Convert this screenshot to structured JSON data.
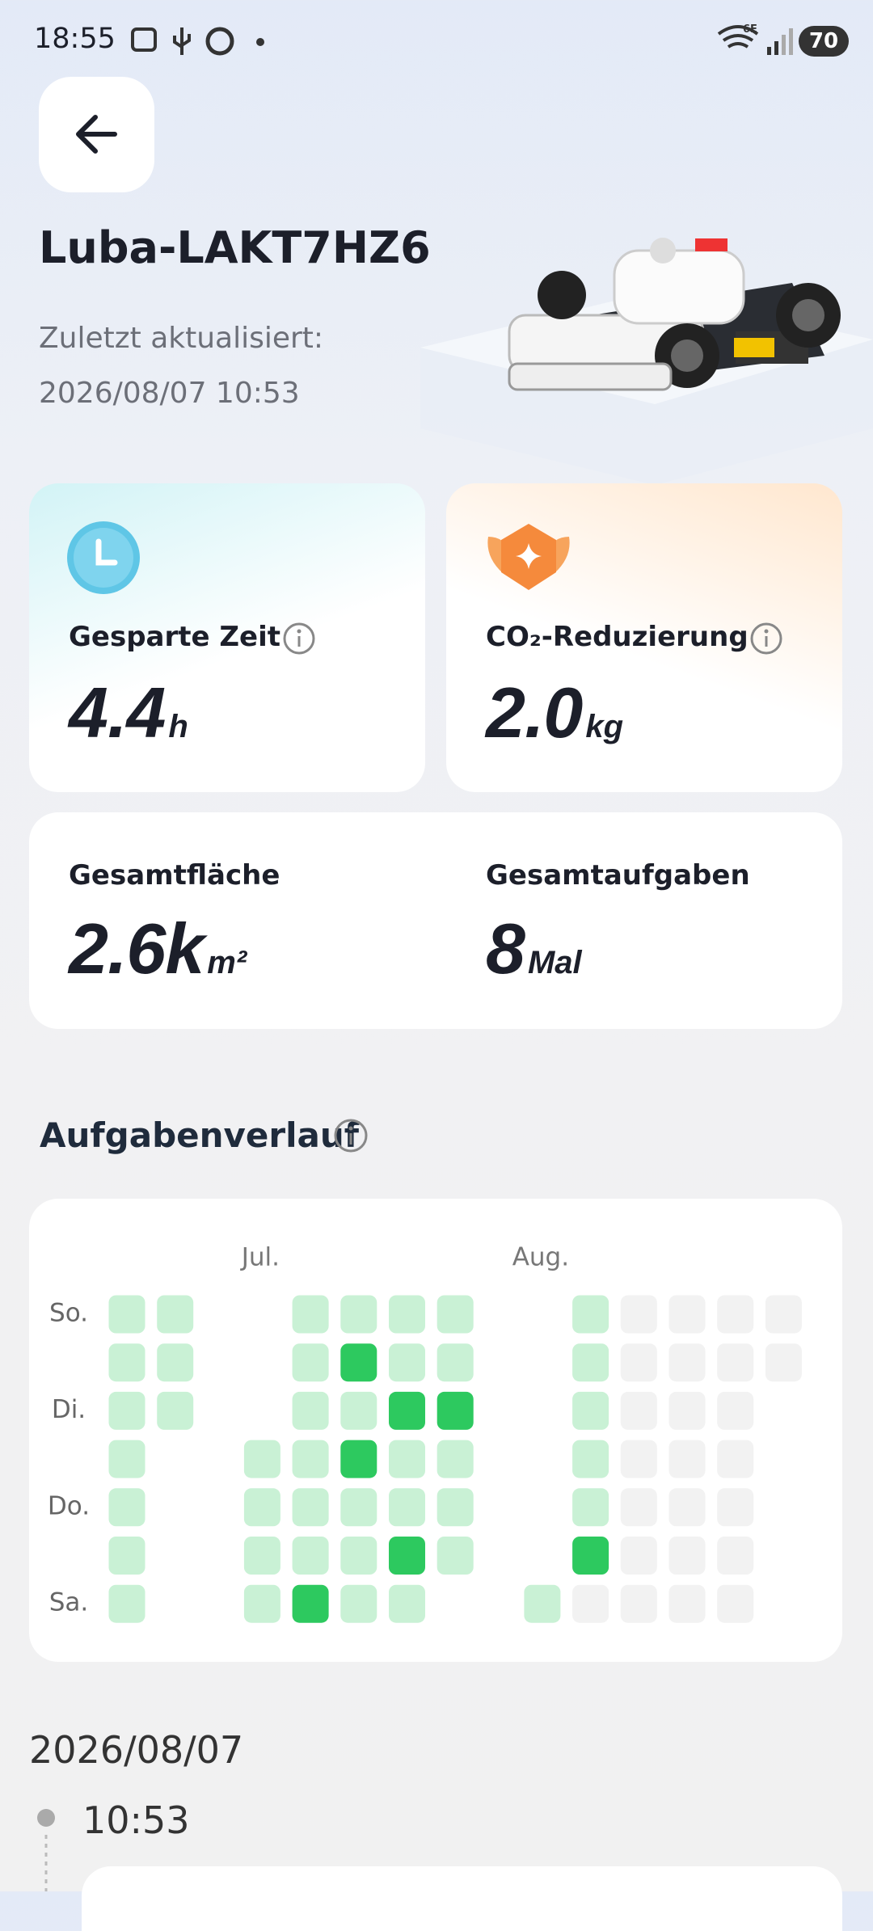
{
  "status_bar": {
    "time": "18:55",
    "battery": "70",
    "network": "6E"
  },
  "header": {
    "device_name": "Luba-LAKT7HZ6",
    "updated_label": "Zuletzt aktualisiert:",
    "updated_at": "2026/08/07 10:53"
  },
  "stats": {
    "saved_time": {
      "label": "Gesparte Zeit",
      "value": "4.4",
      "unit": "h"
    },
    "co2": {
      "label": "CO₂-Reduzierung",
      "value": "2.0",
      "unit": "kg"
    },
    "area": {
      "label": "Gesamtfläche",
      "value": "2.6k",
      "unit": "m²"
    },
    "tasks": {
      "label": "Gesamtaufgaben",
      "value": "8",
      "unit": "Mal"
    }
  },
  "task_history": {
    "title": "Aufgabenverlauf",
    "day_labels": [
      "So.",
      "Di.",
      "Do.",
      "Sa."
    ],
    "level_colors": [
      "#f2f2f2",
      "#c9f1d5",
      "#2dc95f"
    ],
    "months": [
      {
        "weeks": [
          [
            1,
            1,
            1,
            1,
            1,
            1,
            1
          ],
          [
            1,
            1,
            1,
            null,
            null,
            null,
            null
          ]
        ]
      },
      {
        "label": "Jul.",
        "weeks": [
          [
            null,
            null,
            null,
            1,
            1,
            1,
            1
          ],
          [
            1,
            1,
            1,
            1,
            1,
            1,
            2
          ],
          [
            1,
            2,
            1,
            2,
            1,
            1,
            1
          ],
          [
            1,
            1,
            2,
            1,
            1,
            2,
            1
          ],
          [
            1,
            1,
            2,
            1,
            1,
            1,
            null
          ]
        ]
      },
      {
        "label": "Aug.",
        "weeks": [
          [
            null,
            null,
            null,
            null,
            null,
            null,
            1
          ],
          [
            1,
            1,
            1,
            1,
            1,
            2,
            0
          ],
          [
            0,
            0,
            0,
            0,
            0,
            0,
            0
          ],
          [
            0,
            0,
            0,
            0,
            0,
            0,
            0
          ],
          [
            0,
            0,
            0,
            0,
            0,
            0,
            0
          ],
          [
            0,
            0,
            null,
            null,
            null,
            null,
            null
          ]
        ]
      }
    ]
  },
  "log": {
    "date": "2026/08/07",
    "entries": [
      {
        "time": "10:53"
      }
    ]
  }
}
